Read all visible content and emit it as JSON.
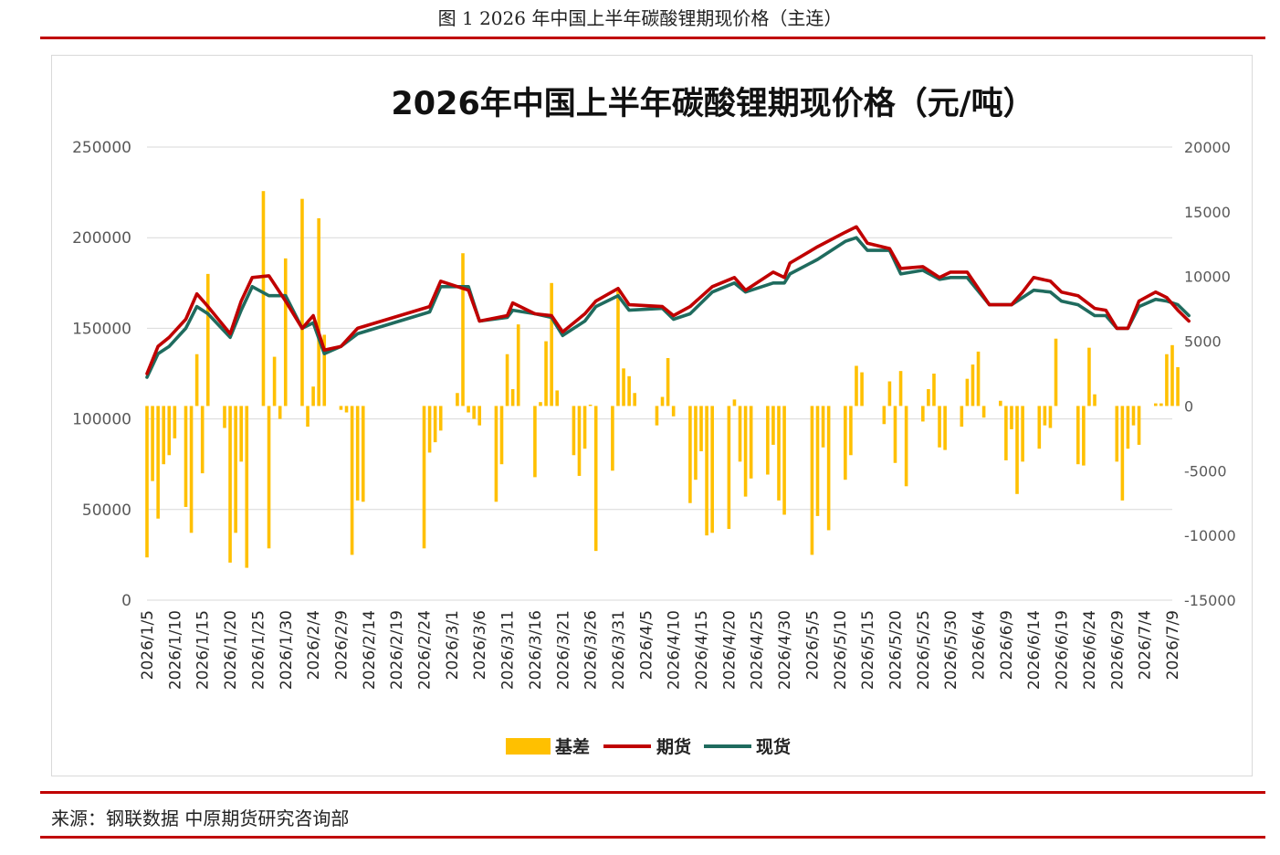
{
  "figure": {
    "caption": "图 1 2026 年中国上半年碳酸锂期现价格（主连）",
    "source": "来源：钢联数据 中原期货研究咨询部"
  },
  "colors": {
    "rule": "#c00000",
    "basis": "#ffc000",
    "futures": "#c00000",
    "spot": "#1f6b5e",
    "grid": "#d9d9d9"
  },
  "chart_data": {
    "type": "bar+line",
    "title": "2026年中国上半年碳酸锂期现价格（元/吨）",
    "y_left": {
      "min": 0,
      "max": 250000,
      "ticks": [
        0,
        50000,
        100000,
        150000,
        200000,
        250000
      ]
    },
    "y_right": {
      "min": -15000,
      "max": 20000,
      "ticks": [
        -15000,
        -10000,
        -5000,
        0,
        5000,
        10000,
        15000,
        20000
      ]
    },
    "x_tick_labels": [
      "2026/1/5",
      "2026/1/10",
      "2026/1/15",
      "2026/1/20",
      "2026/1/25",
      "2026/1/30",
      "2026/2/4",
      "2026/2/9",
      "2026/2/14",
      "2026/2/19",
      "2026/2/24",
      "2026/3/1",
      "2026/3/6",
      "2026/3/11",
      "2026/3/16",
      "2026/3/21",
      "2026/3/26",
      "2026/3/31",
      "2026/4/5",
      "2026/4/10",
      "2026/4/15",
      "2026/4/20",
      "2026/4/25",
      "2026/4/30",
      "2026/5/5",
      "2026/5/10",
      "2026/5/15",
      "2026/5/20",
      "2026/5/25",
      "2026/5/30",
      "2026/6/4",
      "2026/6/9",
      "2026/6/14",
      "2026/6/19",
      "2026/6/24",
      "2026/6/29",
      "2026/7/4",
      "2026/7/9"
    ],
    "legend": [
      "基差",
      "期货",
      "现货"
    ],
    "legend_position": "bottom",
    "grid": true,
    "basis_axis": "right",
    "price_axis": "left",
    "x_start": "2026/1/5",
    "x_end": "2026/7/9",
    "series": [
      {
        "name": "基差",
        "kind": "bar",
        "axis": "right",
        "points": [
          [
            "2026/1/5",
            -11700
          ],
          [
            "2026/1/6",
            -5800
          ],
          [
            "2026/1/7",
            -8700
          ],
          [
            "2026/1/8",
            -4500
          ],
          [
            "2026/1/9",
            -3800
          ],
          [
            "2026/1/10",
            -2500
          ],
          [
            "2026/1/12",
            -7800
          ],
          [
            "2026/1/13",
            -9800
          ],
          [
            "2026/1/14",
            4000
          ],
          [
            "2026/1/15",
            -5200
          ],
          [
            "2026/1/16",
            10200
          ],
          [
            "2026/1/19",
            -1700
          ],
          [
            "2026/1/20",
            -12100
          ],
          [
            "2026/1/21",
            -9800
          ],
          [
            "2026/1/22",
            -4300
          ],
          [
            "2026/1/23",
            -12500
          ],
          [
            "2026/1/26",
            16600
          ],
          [
            "2026/1/27",
            -11000
          ],
          [
            "2026/1/28",
            3800
          ],
          [
            "2026/1/29",
            -1000
          ],
          [
            "2026/1/30",
            11400
          ],
          [
            "2026/2/2",
            16000
          ],
          [
            "2026/2/3",
            -1600
          ],
          [
            "2026/2/4",
            1500
          ],
          [
            "2026/2/5",
            14500
          ],
          [
            "2026/2/6",
            5500
          ],
          [
            "2026/2/9",
            -300
          ],
          [
            "2026/2/10",
            -500
          ],
          [
            "2026/2/11",
            -11500
          ],
          [
            "2026/2/12",
            -7300
          ],
          [
            "2026/2/13",
            -7400
          ],
          [
            "2026/2/24",
            -11000
          ],
          [
            "2026/2/25",
            -3600
          ],
          [
            "2026/2/26",
            -2800
          ],
          [
            "2026/2/27",
            -1900
          ],
          [
            "2026/3/2",
            1000
          ],
          [
            "2026/3/3",
            11800
          ],
          [
            "2026/3/4",
            -500
          ],
          [
            "2026/3/5",
            -1000
          ],
          [
            "2026/3/6",
            -1500
          ],
          [
            "2026/3/9",
            -7400
          ],
          [
            "2026/3/10",
            -4500
          ],
          [
            "2026/3/11",
            4000
          ],
          [
            "2026/3/12",
            1300
          ],
          [
            "2026/3/13",
            6300
          ],
          [
            "2026/3/16",
            -5500
          ],
          [
            "2026/3/17",
            300
          ],
          [
            "2026/3/18",
            5000
          ],
          [
            "2026/3/19",
            9500
          ],
          [
            "2026/3/20",
            1200
          ],
          [
            "2026/3/23",
            -3800
          ],
          [
            "2026/3/24",
            -5400
          ],
          [
            "2026/3/25",
            -3300
          ],
          [
            "2026/3/26",
            100
          ],
          [
            "2026/3/27",
            -11200
          ],
          [
            "2026/3/30",
            -5000
          ],
          [
            "2026/3/31",
            9100
          ],
          [
            "2026/4/1",
            2900
          ],
          [
            "2026/4/2",
            2300
          ],
          [
            "2026/4/3",
            1000
          ],
          [
            "2026/4/7",
            -1500
          ],
          [
            "2026/4/8",
            700
          ],
          [
            "2026/4/9",
            3700
          ],
          [
            "2026/4/10",
            -800
          ],
          [
            "2026/4/13",
            -7500
          ],
          [
            "2026/4/14",
            -5700
          ],
          [
            "2026/4/15",
            -3500
          ],
          [
            "2026/4/16",
            -10000
          ],
          [
            "2026/4/17",
            -9800
          ],
          [
            "2026/4/20",
            -9500
          ],
          [
            "2026/4/21",
            500
          ],
          [
            "2026/4/22",
            -4300
          ],
          [
            "2026/4/23",
            -7000
          ],
          [
            "2026/4/24",
            -5600
          ],
          [
            "2026/4/27",
            -5300
          ],
          [
            "2026/4/28",
            -3000
          ],
          [
            "2026/4/29",
            -7300
          ],
          [
            "2026/4/30",
            -8400
          ],
          [
            "2026/5/5",
            -11500
          ],
          [
            "2026/5/6",
            -8500
          ],
          [
            "2026/5/7",
            -3200
          ],
          [
            "2026/5/8",
            -9600
          ],
          [
            "2026/5/11",
            -5700
          ],
          [
            "2026/5/12",
            -3800
          ],
          [
            "2026/5/13",
            3100
          ],
          [
            "2026/5/14",
            2600
          ],
          [
            "2026/5/18",
            -1400
          ],
          [
            "2026/5/19",
            1900
          ],
          [
            "2026/5/20",
            -4400
          ],
          [
            "2026/5/21",
            2700
          ],
          [
            "2026/5/22",
            -6200
          ],
          [
            "2026/5/25",
            -1200
          ],
          [
            "2026/5/26",
            1300
          ],
          [
            "2026/5/27",
            2500
          ],
          [
            "2026/5/28",
            -3200
          ],
          [
            "2026/5/29",
            -3400
          ],
          [
            "2026/6/1",
            -1600
          ],
          [
            "2026/6/2",
            2100
          ],
          [
            "2026/6/3",
            3200
          ],
          [
            "2026/6/4",
            4200
          ],
          [
            "2026/6/5",
            -900
          ],
          [
            "2026/6/8",
            400
          ],
          [
            "2026/6/9",
            -4200
          ],
          [
            "2026/6/10",
            -1800
          ],
          [
            "2026/6/11",
            -6800
          ],
          [
            "2026/6/12",
            -4300
          ],
          [
            "2026/6/15",
            -3300
          ],
          [
            "2026/6/16",
            -1500
          ],
          [
            "2026/6/17",
            -1700
          ],
          [
            "2026/6/18",
            5200
          ],
          [
            "2026/6/22",
            -4500
          ],
          [
            "2026/6/23",
            -4600
          ],
          [
            "2026/6/24",
            4500
          ],
          [
            "2026/6/25",
            900
          ],
          [
            "2026/6/29",
            -4300
          ],
          [
            "2026/6/30",
            -7300
          ],
          [
            "2026/7/1",
            -3300
          ],
          [
            "2026/7/2",
            -1500
          ],
          [
            "2026/7/3",
            -3000
          ],
          [
            "2026/7/6",
            200
          ],
          [
            "2026/7/7",
            200
          ],
          [
            "2026/7/8",
            4000
          ],
          [
            "2026/7/9",
            4700
          ],
          [
            "2026/7/10",
            3000
          ]
        ]
      },
      {
        "name": "期货",
        "kind": "line",
        "axis": "left",
        "points": [
          [
            "2026/1/5",
            125000
          ],
          [
            "2026/1/7",
            140000
          ],
          [
            "2026/1/9",
            145000
          ],
          [
            "2026/1/12",
            155000
          ],
          [
            "2026/1/14",
            169000
          ],
          [
            "2026/1/16",
            162000
          ],
          [
            "2026/1/20",
            147000
          ],
          [
            "2026/1/22",
            165000
          ],
          [
            "2026/1/24",
            178000
          ],
          [
            "2026/1/27",
            179000
          ],
          [
            "2026/1/30",
            165000
          ],
          [
            "2026/2/2",
            150000
          ],
          [
            "2026/2/4",
            157000
          ],
          [
            "2026/2/6",
            138000
          ],
          [
            "2026/2/9",
            140000
          ],
          [
            "2026/2/12",
            150000
          ],
          [
            "2026/2/25",
            162000
          ],
          [
            "2026/2/27",
            176000
          ],
          [
            "2026/3/4",
            171000
          ],
          [
            "2026/3/6",
            154000
          ],
          [
            "2026/3/11",
            157000
          ],
          [
            "2026/3/12",
            164000
          ],
          [
            "2026/3/16",
            158000
          ],
          [
            "2026/3/19",
            157000
          ],
          [
            "2026/3/21",
            148000
          ],
          [
            "2026/3/25",
            158000
          ],
          [
            "2026/3/27",
            165000
          ],
          [
            "2026/3/31",
            172000
          ],
          [
            "2026/4/2",
            163000
          ],
          [
            "2026/4/8",
            162000
          ],
          [
            "2026/4/10",
            157000
          ],
          [
            "2026/4/13",
            162000
          ],
          [
            "2026/4/17",
            173000
          ],
          [
            "2026/4/21",
            178000
          ],
          [
            "2026/4/23",
            171000
          ],
          [
            "2026/4/28",
            181000
          ],
          [
            "2026/4/30",
            178000
          ],
          [
            "2026/5/1",
            186000
          ],
          [
            "2026/5/6",
            195000
          ],
          [
            "2026/5/11",
            203000
          ],
          [
            "2026/5/13",
            206000
          ],
          [
            "2026/5/15",
            197000
          ],
          [
            "2026/5/19",
            194000
          ],
          [
            "2026/5/21",
            183000
          ],
          [
            "2026/5/25",
            184000
          ],
          [
            "2026/5/28",
            178000
          ],
          [
            "2026/5/30",
            181000
          ],
          [
            "2026/6/2",
            181000
          ],
          [
            "2026/6/6",
            163000
          ],
          [
            "2026/6/10",
            163000
          ],
          [
            "2026/6/12",
            170000
          ],
          [
            "2026/6/14",
            178000
          ],
          [
            "2026/6/17",
            176000
          ],
          [
            "2026/6/19",
            170000
          ],
          [
            "2026/6/22",
            168000
          ],
          [
            "2026/6/25",
            161000
          ],
          [
            "2026/6/27",
            160000
          ],
          [
            "2026/6/29",
            150000
          ],
          [
            "2026/7/1",
            150000
          ],
          [
            "2026/7/3",
            165000
          ],
          [
            "2026/7/6",
            170000
          ],
          [
            "2026/7/8",
            167000
          ],
          [
            "2026/7/10",
            160000
          ],
          [
            "2026/7/12",
            154000
          ]
        ]
      },
      {
        "name": "现货",
        "kind": "line",
        "axis": "left",
        "points": [
          [
            "2026/1/5",
            123000
          ],
          [
            "2026/1/7",
            136000
          ],
          [
            "2026/1/9",
            140000
          ],
          [
            "2026/1/12",
            150000
          ],
          [
            "2026/1/14",
            162000
          ],
          [
            "2026/1/16",
            158000
          ],
          [
            "2026/1/20",
            145000
          ],
          [
            "2026/1/22",
            160000
          ],
          [
            "2026/1/24",
            173000
          ],
          [
            "2026/1/27",
            168000
          ],
          [
            "2026/1/30",
            168000
          ],
          [
            "2026/2/2",
            150000
          ],
          [
            "2026/2/4",
            153000
          ],
          [
            "2026/2/6",
            136000
          ],
          [
            "2026/2/9",
            140000
          ],
          [
            "2026/2/12",
            147000
          ],
          [
            "2026/2/25",
            159000
          ],
          [
            "2026/2/27",
            173000
          ],
          [
            "2026/3/4",
            173000
          ],
          [
            "2026/3/6",
            154000
          ],
          [
            "2026/3/11",
            156000
          ],
          [
            "2026/3/12",
            160000
          ],
          [
            "2026/3/16",
            158000
          ],
          [
            "2026/3/19",
            156000
          ],
          [
            "2026/3/21",
            146000
          ],
          [
            "2026/3/25",
            154000
          ],
          [
            "2026/3/27",
            162000
          ],
          [
            "2026/3/31",
            168000
          ],
          [
            "2026/4/2",
            160000
          ],
          [
            "2026/4/8",
            161000
          ],
          [
            "2026/4/10",
            155000
          ],
          [
            "2026/4/13",
            158000
          ],
          [
            "2026/4/17",
            170000
          ],
          [
            "2026/4/21",
            175000
          ],
          [
            "2026/4/23",
            170000
          ],
          [
            "2026/4/28",
            175000
          ],
          [
            "2026/4/30",
            175000
          ],
          [
            "2026/5/1",
            180000
          ],
          [
            "2026/5/6",
            188000
          ],
          [
            "2026/5/11",
            198000
          ],
          [
            "2026/5/13",
            200000
          ],
          [
            "2026/5/15",
            193000
          ],
          [
            "2026/5/19",
            193000
          ],
          [
            "2026/5/21",
            180000
          ],
          [
            "2026/5/25",
            182000
          ],
          [
            "2026/5/28",
            177000
          ],
          [
            "2026/5/30",
            178000
          ],
          [
            "2026/6/2",
            178000
          ],
          [
            "2026/6/6",
            163000
          ],
          [
            "2026/6/10",
            163000
          ],
          [
            "2026/6/12",
            167000
          ],
          [
            "2026/6/14",
            171000
          ],
          [
            "2026/6/17",
            170000
          ],
          [
            "2026/6/19",
            165000
          ],
          [
            "2026/6/22",
            163000
          ],
          [
            "2026/6/25",
            157000
          ],
          [
            "2026/6/27",
            157000
          ],
          [
            "2026/6/29",
            150000
          ],
          [
            "2026/7/1",
            150000
          ],
          [
            "2026/7/3",
            162000
          ],
          [
            "2026/7/6",
            166000
          ],
          [
            "2026/7/8",
            165000
          ],
          [
            "2026/7/10",
            163000
          ],
          [
            "2026/7/12",
            157000
          ]
        ]
      }
    ]
  }
}
